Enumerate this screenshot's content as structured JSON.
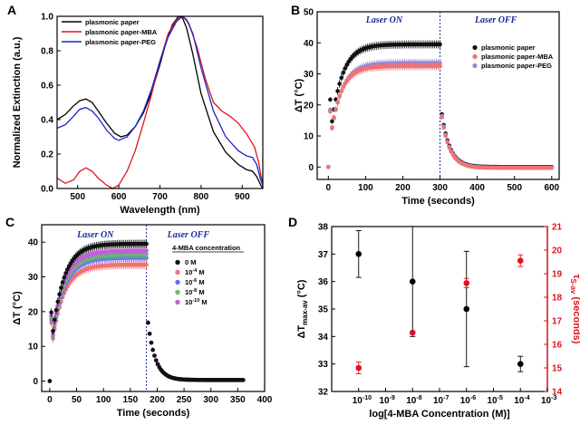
{
  "chart_data": [
    {
      "panel": "A",
      "type": "line",
      "xlabel": "Wavelength (nm)",
      "ylabel": "Normalized Extinction (a.u.)",
      "xlim": [
        450,
        950
      ],
      "ylim": [
        0,
        1.0
      ],
      "xticks": [
        500,
        600,
        700,
        800,
        900
      ],
      "yticks": [
        0.0,
        0.2,
        0.4,
        0.6,
        0.8,
        1.0
      ],
      "legend": [
        "plasmonic paper",
        "plasmonic paper-MBA",
        "plasmonic paper-PEG"
      ],
      "legend_position": "top-left",
      "series": [
        {
          "name": "plasmonic paper",
          "color": "#000000",
          "x": [
            450,
            470,
            490,
            505,
            520,
            535,
            550,
            570,
            590,
            605,
            620,
            640,
            660,
            680,
            700,
            715,
            730,
            745,
            755,
            765,
            780,
            800,
            830,
            860,
            890,
            910,
            925,
            935,
            945,
            950
          ],
          "y": [
            0.4,
            0.43,
            0.48,
            0.51,
            0.52,
            0.5,
            0.45,
            0.38,
            0.32,
            0.3,
            0.31,
            0.36,
            0.44,
            0.56,
            0.72,
            0.85,
            0.95,
            1.0,
            0.99,
            0.93,
            0.78,
            0.55,
            0.33,
            0.21,
            0.14,
            0.11,
            0.1,
            0.07,
            0.02,
            0.0
          ]
        },
        {
          "name": "plasmonic paper-MBA",
          "color": "#e0141e",
          "x": [
            450,
            470,
            490,
            505,
            520,
            535,
            550,
            570,
            585,
            600,
            620,
            640,
            660,
            680,
            700,
            720,
            740,
            755,
            770,
            790,
            810,
            830,
            850,
            870,
            890,
            910,
            930,
            940,
            945,
            950
          ],
          "y": [
            0.06,
            0.03,
            0.05,
            0.1,
            0.12,
            0.1,
            0.06,
            0.02,
            0.0,
            0.02,
            0.1,
            0.22,
            0.38,
            0.55,
            0.74,
            0.9,
            0.98,
            1.0,
            0.96,
            0.82,
            0.64,
            0.5,
            0.45,
            0.42,
            0.38,
            0.32,
            0.24,
            0.15,
            0.08,
            0.03
          ]
        },
        {
          "name": "plasmonic paper-PEG",
          "color": "#1c24c8",
          "x": [
            450,
            470,
            490,
            505,
            520,
            535,
            550,
            570,
            590,
            600,
            620,
            640,
            660,
            680,
            700,
            720,
            740,
            755,
            765,
            780,
            800,
            830,
            860,
            890,
            910,
            925,
            935,
            945,
            950
          ],
          "y": [
            0.35,
            0.37,
            0.42,
            0.46,
            0.47,
            0.45,
            0.41,
            0.34,
            0.29,
            0.28,
            0.3,
            0.36,
            0.45,
            0.58,
            0.74,
            0.88,
            0.97,
            1.0,
            0.98,
            0.9,
            0.7,
            0.45,
            0.3,
            0.22,
            0.19,
            0.18,
            0.14,
            0.05,
            0.02
          ]
        }
      ]
    },
    {
      "panel": "B",
      "type": "scatter",
      "xlabel": "Time (seconds)",
      "ylabel": "ΔT (°C)",
      "xlim": [
        -30,
        620
      ],
      "ylim": [
        -4,
        50
      ],
      "xticks": [
        0,
        100,
        200,
        300,
        400,
        500,
        600
      ],
      "yticks": [
        0,
        10,
        20,
        30,
        40,
        50
      ],
      "vline": 300,
      "annotations": [
        "Laser ON",
        "Laser OFF"
      ],
      "legend": [
        "plasmonic paper",
        "plasmonic paper-MBA",
        "plasmonic paper-PEG"
      ],
      "legend_position": "right",
      "series": [
        {
          "name": "plasmonic paper",
          "color": "#111111",
          "plateau": 39.5,
          "rise_tau": 30,
          "start": 0,
          "errors": 1.3,
          "off_value": 17.0,
          "off_tau": 22,
          "off_floor": 0.0
        },
        {
          "name": "plasmonic paper-MBA",
          "color": "#f07272",
          "plateau": 32.5,
          "rise_tau": 28,
          "start": 0,
          "errors": 1.3,
          "off_value": 16.0,
          "off_tau": 22,
          "off_floor": -0.3
        },
        {
          "name": "plasmonic paper-PEG",
          "color": "#8a8ae8",
          "plateau": 33.5,
          "rise_tau": 30,
          "start": 0,
          "errors": 1.3,
          "off_value": 16.5,
          "off_tau": 22,
          "off_floor": -0.2
        }
      ]
    },
    {
      "panel": "C",
      "type": "scatter",
      "xlabel": "Time (seconds)",
      "ylabel": "ΔT (°C)",
      "xlim": [
        -15,
        400
      ],
      "ylim": [
        -3,
        45
      ],
      "xticks": [
        0,
        50,
        100,
        150,
        200,
        250,
        300,
        350,
        400
      ],
      "yticks": [
        0,
        10,
        20,
        30,
        40
      ],
      "vline": 180,
      "annotations": [
        "Laser ON",
        "Laser OFF"
      ],
      "legend_title": "4-MBA concentration",
      "legend": [
        "0 M",
        "10-4 M",
        "10-6 M",
        "10-8 M",
        "10-10 M"
      ],
      "legend_position": "right",
      "series": [
        {
          "name": "0 M",
          "color": "#111111",
          "plateau": 39.5,
          "errors": 1.2
        },
        {
          "name": "10⁻⁴ M",
          "color": "#f07272",
          "plateau": 33.5,
          "errors": 1.2
        },
        {
          "name": "10⁻⁶ M",
          "color": "#6e6ef0",
          "plateau": 35.5,
          "errors": 1.2
        },
        {
          "name": "10⁻⁸ M",
          "color": "#5cc65c",
          "plateau": 36.5,
          "errors": 1.2
        },
        {
          "name": "10⁻¹⁰ M",
          "color": "#c060d8",
          "plateau": 37.5,
          "errors": 1.2
        }
      ]
    },
    {
      "panel": "D",
      "type": "scatter",
      "xlabel": "log[4-MBA Concentration (M)]",
      "ylabel_left": "ΔTmax-av (°C)",
      "ylabel_right": "τS-av (seconds)",
      "xlim": [
        -11,
        -3
      ],
      "ylim_left": [
        32,
        38
      ],
      "ylim_right": [
        14,
        21
      ],
      "xticks": [
        "10-10",
        "10-9",
        "10-8",
        "10-7",
        "10-6",
        "10-5",
        "10-4",
        "10-3"
      ],
      "yticks_left": [
        32,
        33,
        34,
        35,
        36,
        37,
        38
      ],
      "yticks_right": [
        14,
        15,
        16,
        17,
        18,
        19,
        20,
        21
      ],
      "series": [
        {
          "name": "ΔTmax-av",
          "color": "#000000",
          "axis": "left",
          "x": [
            -10,
            -8,
            -6,
            -4
          ],
          "y": [
            37.0,
            36.0,
            35.0,
            33.0
          ],
          "err": [
            0.85,
            2.0,
            2.1,
            0.28
          ]
        },
        {
          "name": "τS-av",
          "color": "#e0141e",
          "axis": "right",
          "x": [
            -10,
            -8,
            -6,
            -4
          ],
          "y": [
            15.0,
            16.5,
            18.6,
            19.55
          ],
          "err": [
            0.25,
            0.0,
            0.2,
            0.25
          ]
        }
      ]
    }
  ]
}
